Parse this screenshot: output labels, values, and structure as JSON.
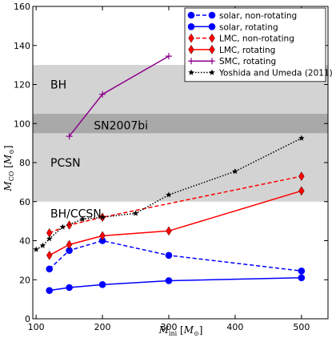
{
  "chart_data": {
    "type": "line",
    "xlabel": "M_ini [M_⊙]",
    "ylabel": "M_CO [M_⊙]",
    "xlim": [
      95,
      540
    ],
    "ylim": [
      0,
      160
    ],
    "xticks": [
      100,
      200,
      300,
      400,
      500
    ],
    "yticks": [
      0,
      20,
      40,
      60,
      80,
      100,
      120,
      140,
      160
    ],
    "grid": false,
    "legend_position": "top-right",
    "bands": [
      {
        "label": "BH",
        "y0": 105,
        "y1": 130,
        "color": "#d3d3d3"
      },
      {
        "label": "SN2007bi",
        "y0": 95,
        "y1": 105,
        "color": "#a9a9a9"
      },
      {
        "label": "PCSN",
        "y0": 60,
        "y1": 95,
        "color": "#d3d3d3"
      },
      {
        "label": "BH/CCSN",
        "y0": 0,
        "y1": 60,
        "color": "#ffffff"
      }
    ],
    "series": [
      {
        "name": "solar, non-rotating",
        "color": "#0000ff",
        "dash": "dashed",
        "marker": "circle",
        "x": [
          120,
          150,
          200,
          300,
          500
        ],
        "values": [
          25.5,
          35,
          40,
          32.5,
          24.5
        ]
      },
      {
        "name": "solar, rotating",
        "color": "#0000ff",
        "dash": "solid",
        "marker": "circle",
        "x": [
          120,
          150,
          200,
          300,
          500
        ],
        "values": [
          14.5,
          16,
          17.5,
          19.5,
          21
        ]
      },
      {
        "name": "LMC, non-rotating",
        "color": "#ff0000",
        "dash": "dashed",
        "marker": "diamond",
        "x": [
          120,
          150,
          200,
          500
        ],
        "values": [
          44,
          48,
          52,
          73
        ]
      },
      {
        "name": "LMC, rotating",
        "color": "#ff0000",
        "dash": "solid",
        "marker": "diamond",
        "x": [
          120,
          150,
          200,
          300,
          500
        ],
        "values": [
          32.5,
          38,
          42.5,
          45,
          65.5
        ]
      },
      {
        "name": "SMC, rotating",
        "color": "#8b008b",
        "dash": "solid",
        "marker": "plus",
        "x": [
          150,
          200,
          300
        ],
        "values": [
          93.5,
          115,
          134.5
        ]
      },
      {
        "name": "Yoshida and Umeda (2011)",
        "color": "#000000",
        "dash": "dotted",
        "marker": "star",
        "x": [
          100,
          110,
          120,
          140,
          170,
          200,
          250,
          300,
          400,
          500
        ],
        "values": [
          35.5,
          37.5,
          41,
          47,
          51,
          52,
          54,
          63.5,
          75.5,
          92.5
        ]
      }
    ]
  }
}
